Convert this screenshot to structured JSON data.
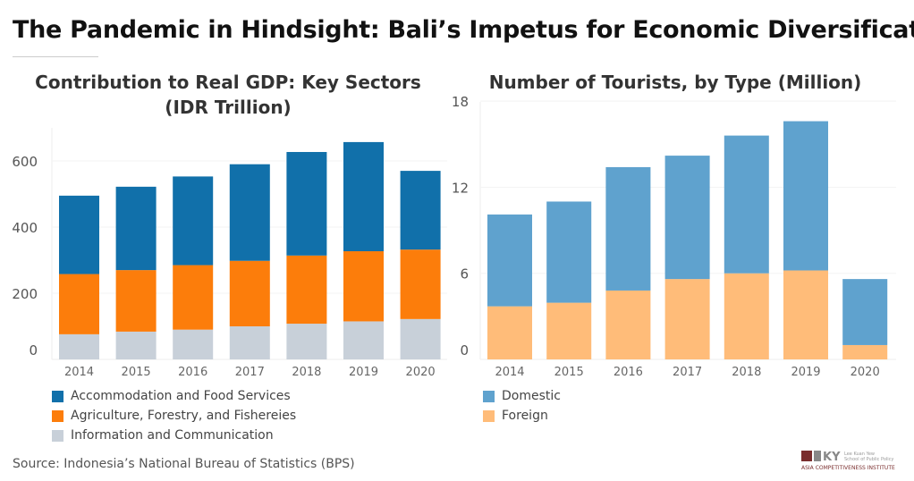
{
  "title": "The Pandemic in Hindsight: Bali’s Impetus for Economic Diversification",
  "source": "Source: Indonesia’s National Bureau of Statistics (BPS)",
  "logo": {
    "line1": "Lee Kuan Yew School of Public Policy",
    "line2": "Asia Competitiveness Institute"
  },
  "chart_data": [
    {
      "type": "bar",
      "stacked": true,
      "title": "Contribution to Real GDP: Key Sectors",
      "subtitle": "(IDR Trillion)",
      "categories": [
        "2014",
        "2015",
        "2016",
        "2017",
        "2018",
        "2019",
        "2020"
      ],
      "ylim": [
        0,
        700
      ],
      "yticks": [
        0,
        200,
        400,
        600
      ],
      "series": [
        {
          "name": "Information and Communication",
          "color": "#c8d0d9",
          "values": [
            76,
            84,
            90,
            100,
            108,
            115,
            122
          ]
        },
        {
          "name": "Agriculture, Forestry, and Fishereies",
          "color": "#fc7d0b",
          "values": [
            182,
            186,
            195,
            198,
            206,
            212,
            210
          ]
        },
        {
          "name": "Accommodation and Food Services",
          "color": "#1170aa",
          "values": [
            237,
            252,
            268,
            292,
            313,
            330,
            238
          ]
        }
      ],
      "legend": [
        "Accommodation and Food Services",
        "Agriculture, Forestry, and Fishereies",
        "Information and Communication"
      ]
    },
    {
      "type": "bar",
      "stacked": true,
      "title": "Number of Tourists, by Type (Million)",
      "categories": [
        "2014",
        "2015",
        "2016",
        "2017",
        "2018",
        "2019",
        "2020"
      ],
      "ylim": [
        0,
        18.2
      ],
      "yticks": [
        0,
        6,
        12,
        18
      ],
      "series": [
        {
          "name": "Foreign",
          "color": "#ffbc79",
          "values": [
            3.7,
            3.95,
            4.8,
            5.6,
            6.0,
            6.2,
            1.0
          ]
        },
        {
          "name": "Domestic",
          "color": "#5fa2ce",
          "values": [
            6.4,
            7.05,
            8.6,
            8.6,
            9.6,
            10.4,
            4.6
          ]
        }
      ],
      "legend": [
        "Domestic",
        "Foreign"
      ]
    }
  ]
}
